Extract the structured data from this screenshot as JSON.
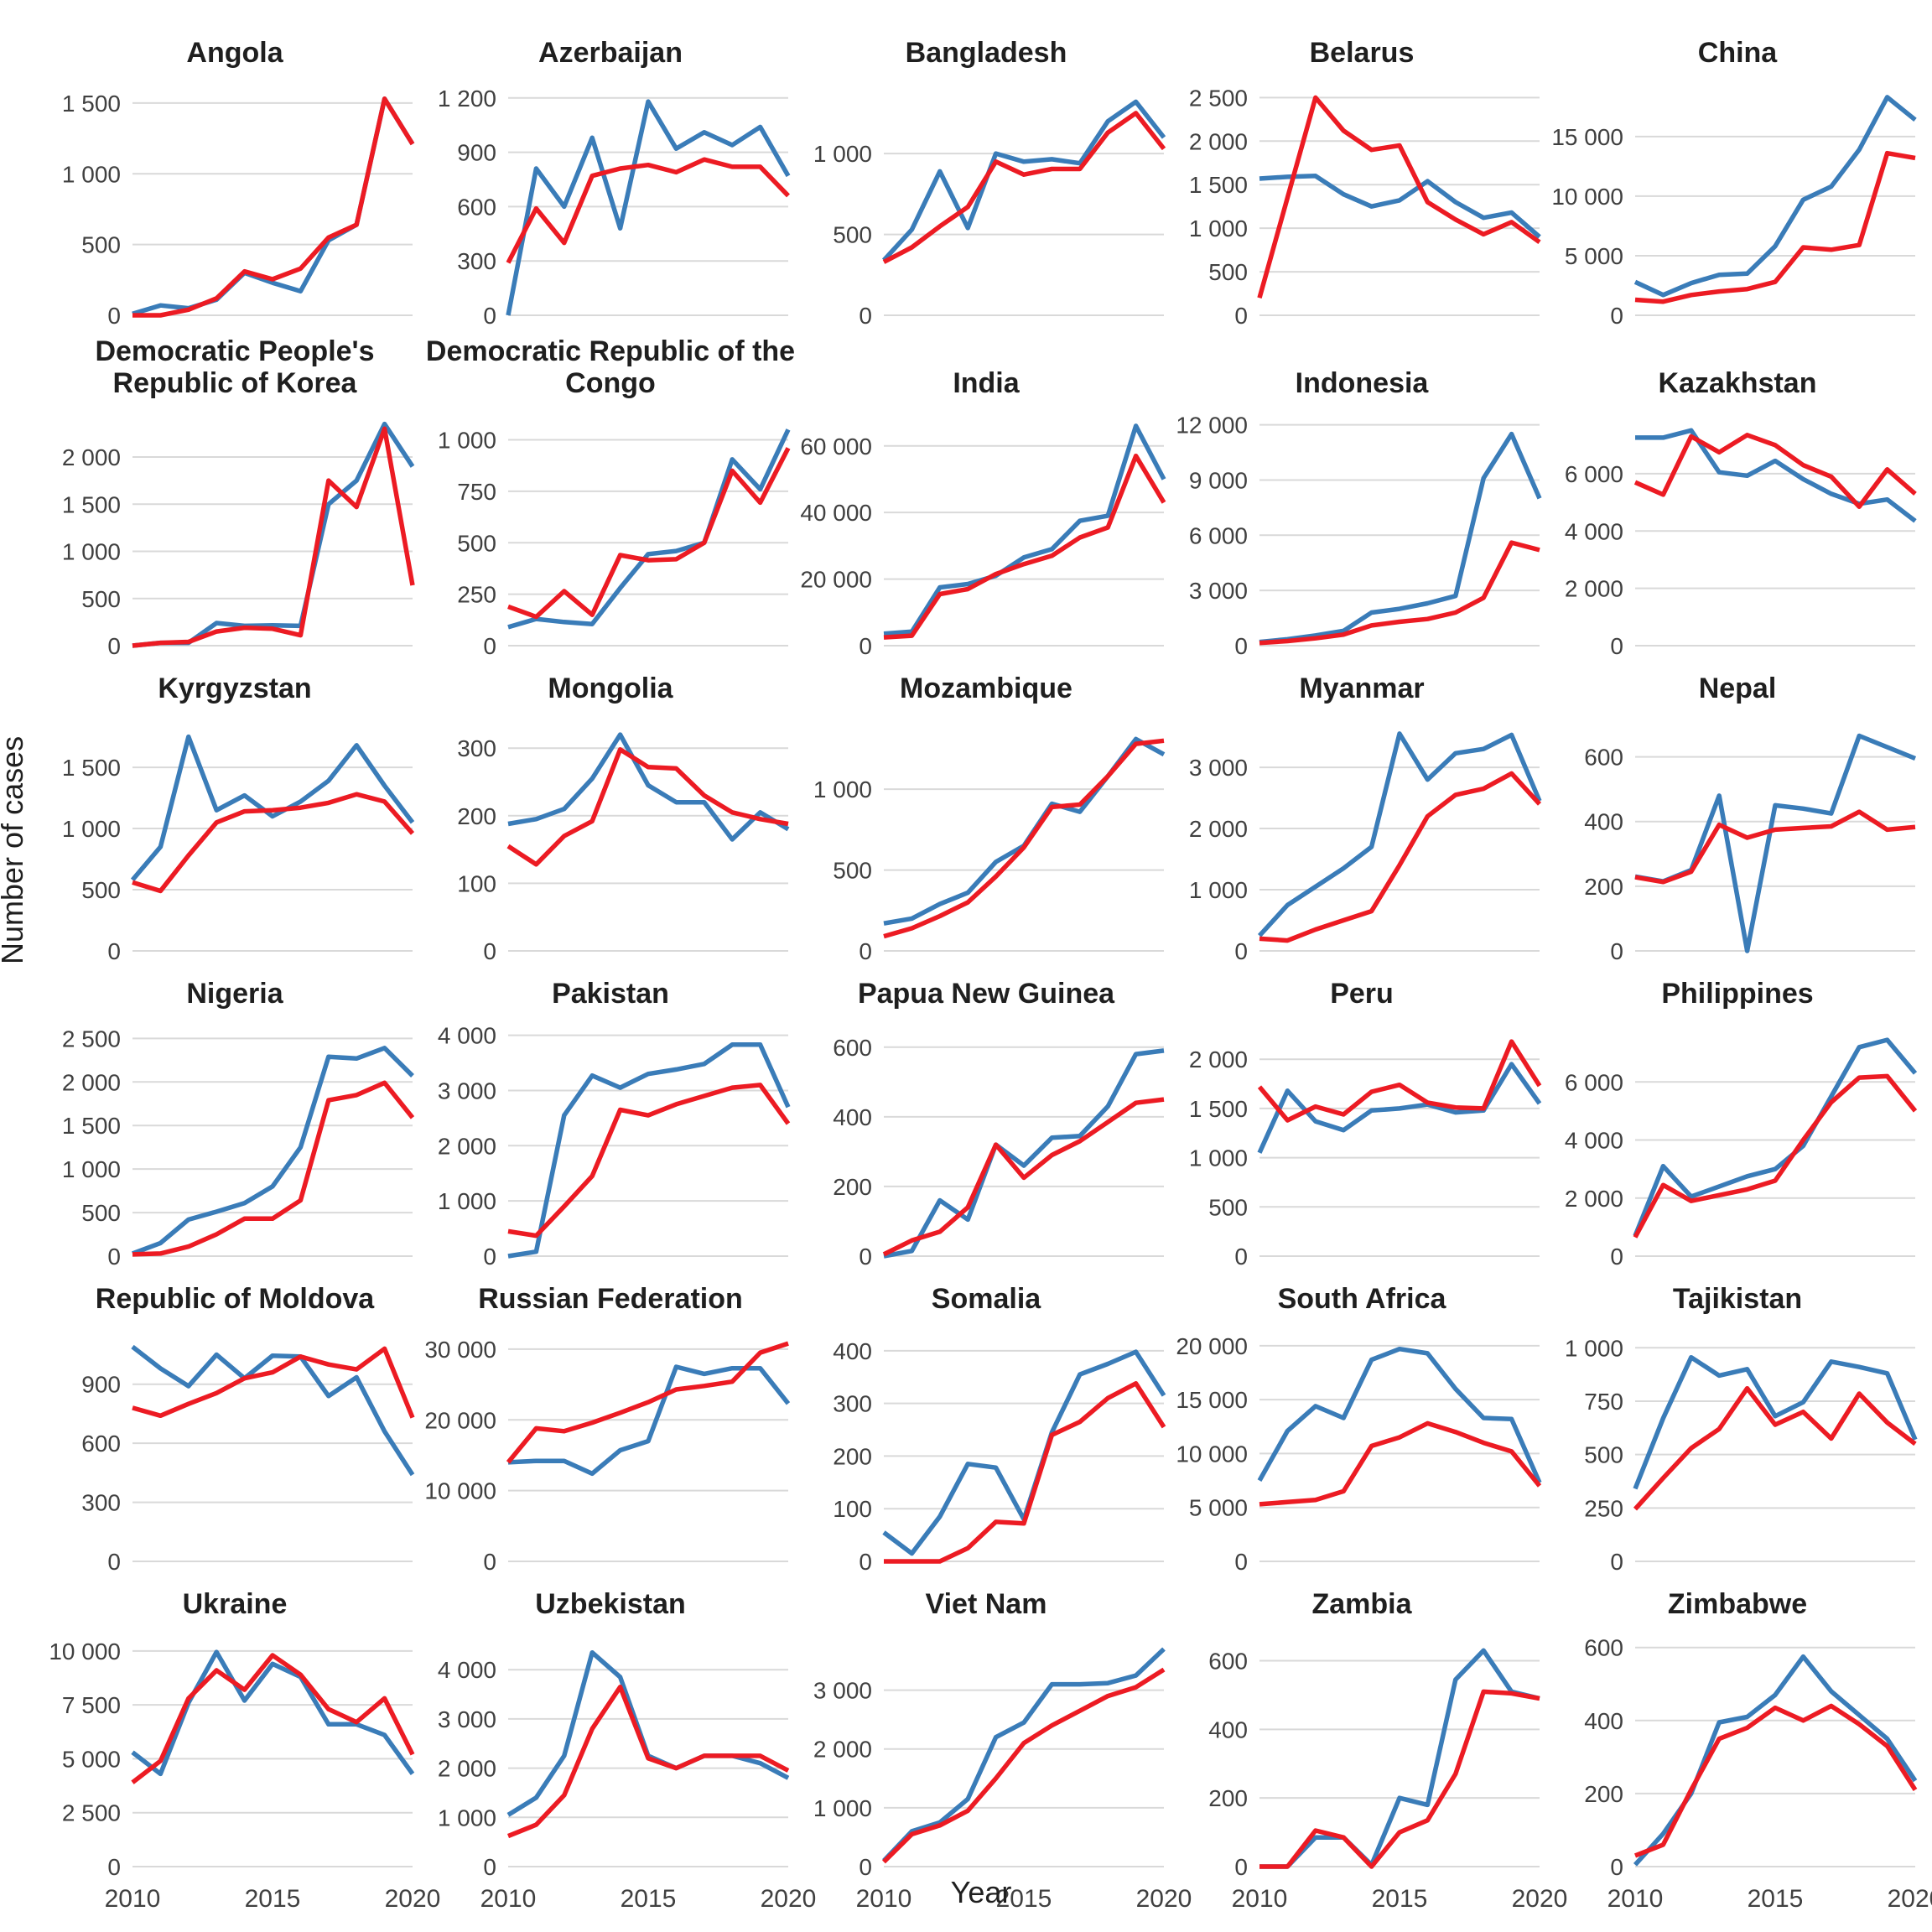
{
  "figure": {
    "ylabel": "Number of cases",
    "xlabel": "Year",
    "x_tick_labels": [
      "2010",
      "2015",
      "2020"
    ]
  },
  "chart_data": {
    "type": "line",
    "x": [
      2010,
      2011,
      2012,
      2013,
      2014,
      2015,
      2016,
      2017,
      2018,
      2019,
      2020
    ],
    "x_ticks": [
      2010,
      2015,
      2020
    ],
    "xlabel": "Year",
    "ylabel": "Number of cases",
    "grid": "horizontal-only",
    "legend_position": "none",
    "series_names": [
      "blue",
      "red"
    ],
    "colors": {
      "blue": "#3a7cb8",
      "red": "#ec1b23",
      "gridline": "#d9d9d9",
      "tick_text": "#404040",
      "title_text": "#1f1f1f"
    },
    "panels": [
      {
        "title": "Angola",
        "ylim": [
          0,
          1600
        ],
        "yticks": [
          0,
          500,
          1000,
          1500
        ],
        "blue": [
          10,
          70,
          50,
          110,
          300,
          230,
          170,
          530,
          640,
          1530,
          1210
        ],
        "red": [
          0,
          0,
          40,
          120,
          310,
          255,
          330,
          550,
          640,
          1530,
          1210
        ]
      },
      {
        "title": "Azerbaijan",
        "ylim": [
          0,
          1250
        ],
        "yticks": [
          0,
          300,
          600,
          900,
          1200
        ],
        "blue": [
          0,
          810,
          600,
          980,
          480,
          1180,
          920,
          1010,
          940,
          1040,
          770
        ],
        "red": [
          290,
          590,
          400,
          770,
          810,
          830,
          790,
          860,
          820,
          820,
          660
        ]
      },
      {
        "title": "Bangladesh",
        "ylim": [
          0,
          1400
        ],
        "yticks": [
          0,
          500,
          1000
        ],
        "blue": [
          340,
          530,
          890,
          540,
          1000,
          950,
          965,
          940,
          1200,
          1320,
          1100
        ],
        "red": [
          330,
          420,
          550,
          670,
          950,
          870,
          905,
          905,
          1130,
          1250,
          1030
        ]
      },
      {
        "title": "Belarus",
        "ylim": [
          0,
          2600
        ],
        "yticks": [
          0,
          500,
          1000,
          1500,
          2000,
          2500
        ],
        "blue": [
          1570,
          1590,
          1600,
          1390,
          1250,
          1320,
          1540,
          1300,
          1120,
          1180,
          900
        ],
        "red": [
          200,
          1350,
          2500,
          2120,
          1900,
          1950,
          1300,
          1100,
          930,
          1070,
          840
        ]
      },
      {
        "title": "China",
        "ylim": [
          0,
          19000
        ],
        "yticks": [
          0,
          5000,
          10000,
          15000
        ],
        "blue": [
          2800,
          1700,
          2700,
          3400,
          3500,
          5800,
          9700,
          10800,
          13900,
          18300,
          16400
        ],
        "red": [
          1300,
          1150,
          1700,
          2000,
          2200,
          2800,
          5700,
          5500,
          5900,
          13600,
          13200
        ]
      },
      {
        "title": "Democratic People's Republic of Korea",
        "ylim": [
          0,
          2400
        ],
        "yticks": [
          0,
          500,
          1000,
          1500,
          2000
        ],
        "blue": [
          0,
          30,
          30,
          240,
          210,
          215,
          210,
          1500,
          1750,
          2350,
          1900
        ],
        "red": [
          0,
          30,
          40,
          150,
          190,
          180,
          110,
          1750,
          1470,
          2300,
          640
        ]
      },
      {
        "title": "Democratic Republic of the Congo",
        "ylim": [
          0,
          1100
        ],
        "yticks": [
          0,
          250,
          500,
          750,
          1000
        ],
        "blue": [
          90,
          130,
          115,
          105,
          280,
          445,
          460,
          500,
          905,
          760,
          1050
        ],
        "red": [
          190,
          140,
          265,
          150,
          440,
          415,
          420,
          500,
          850,
          695,
          960
        ]
      },
      {
        "title": "India",
        "ylim": [
          0,
          68000
        ],
        "yticks": [
          0,
          20000,
          40000,
          60000
        ],
        "blue": [
          3600,
          4200,
          17500,
          18500,
          21000,
          26500,
          29000,
          37500,
          39000,
          66000,
          50000
        ],
        "red": [
          2500,
          3000,
          15500,
          17000,
          21500,
          24500,
          27000,
          32500,
          35500,
          57000,
          43000
        ]
      },
      {
        "title": "Indonesia",
        "ylim": [
          0,
          12300
        ],
        "yticks": [
          0,
          3000,
          6000,
          9000,
          12000
        ],
        "blue": [
          200,
          350,
          550,
          800,
          1800,
          2000,
          2300,
          2700,
          9100,
          11500,
          8000
        ],
        "red": [
          150,
          250,
          400,
          600,
          1100,
          1300,
          1450,
          1800,
          2600,
          5600,
          5200
        ]
      },
      {
        "title": "Kazakhstan",
        "ylim": [
          0,
          7900
        ],
        "yticks": [
          0,
          2000,
          4000,
          6000
        ],
        "blue": [
          7260,
          7260,
          7510,
          6050,
          5930,
          6450,
          5810,
          5300,
          4950,
          5100,
          4350
        ],
        "red": [
          5700,
          5270,
          7300,
          6750,
          7350,
          7000,
          6300,
          5900,
          4850,
          6150,
          5300
        ]
      },
      {
        "title": "Kyrgyzstan",
        "ylim": [
          0,
          1850
        ],
        "yticks": [
          0,
          500,
          1000,
          1500
        ],
        "blue": [
          580,
          850,
          1750,
          1150,
          1270,
          1100,
          1220,
          1390,
          1680,
          1350,
          1050
        ],
        "red": [
          560,
          490,
          780,
          1050,
          1140,
          1150,
          1170,
          1210,
          1280,
          1220,
          960
        ]
      },
      {
        "title": "Mongolia",
        "ylim": [
          0,
          335
        ],
        "yticks": [
          0,
          100,
          200,
          300
        ],
        "blue": [
          188,
          195,
          210,
          255,
          320,
          245,
          220,
          220,
          165,
          205,
          180
        ],
        "red": [
          155,
          128,
          170,
          192,
          298,
          272,
          270,
          230,
          205,
          195,
          188
        ]
      },
      {
        "title": "Mozambique",
        "ylim": [
          0,
          1400
        ],
        "yticks": [
          0,
          500,
          1000
        ],
        "blue": [
          170,
          200,
          290,
          360,
          550,
          650,
          910,
          860,
          1080,
          1310,
          1215
        ],
        "red": [
          90,
          140,
          215,
          300,
          460,
          640,
          890,
          905,
          1080,
          1280,
          1300
        ]
      },
      {
        "title": "Myanmar",
        "ylim": [
          0,
          3700
        ],
        "yticks": [
          0,
          1000,
          2000,
          3000
        ],
        "blue": [
          250,
          750,
          1050,
          1350,
          1700,
          3550,
          2800,
          3230,
          3300,
          3530,
          2450
        ],
        "red": [
          200,
          170,
          350,
          500,
          650,
          1400,
          2200,
          2550,
          2650,
          2900,
          2400
        ]
      },
      {
        "title": "Nepal",
        "ylim": [
          0,
          700
        ],
        "yticks": [
          0,
          200,
          400,
          600
        ],
        "blue": [
          230,
          215,
          250,
          480,
          0,
          450,
          440,
          425,
          665,
          630,
          595
        ],
        "red": [
          228,
          213,
          245,
          390,
          350,
          375,
          380,
          385,
          430,
          375,
          383
        ]
      },
      {
        "title": "Nigeria",
        "ylim": [
          0,
          2600
        ],
        "yticks": [
          0,
          500,
          1000,
          1500,
          2000,
          2500
        ],
        "blue": [
          30,
          150,
          420,
          510,
          610,
          800,
          1250,
          2290,
          2270,
          2390,
          2070
        ],
        "red": [
          20,
          30,
          110,
          250,
          430,
          430,
          640,
          1790,
          1850,
          1990,
          1590
        ]
      },
      {
        "title": "Pakistan",
        "ylim": [
          0,
          4100
        ],
        "yticks": [
          0,
          1000,
          2000,
          3000,
          4000
        ],
        "blue": [
          0,
          80,
          2550,
          3270,
          3050,
          3300,
          3380,
          3480,
          3830,
          3830,
          2700
        ],
        "red": [
          450,
          370,
          900,
          1450,
          2650,
          2550,
          2750,
          2900,
          3050,
          3100,
          2400
        ]
      },
      {
        "title": "Papua New Guinea",
        "ylim": [
          0,
          650
        ],
        "yticks": [
          0,
          200,
          400,
          600
        ],
        "blue": [
          0,
          15,
          160,
          105,
          320,
          260,
          340,
          345,
          430,
          580,
          590
        ],
        "red": [
          5,
          45,
          70,
          140,
          320,
          225,
          290,
          330,
          385,
          440,
          450
        ]
      },
      {
        "title": "Peru",
        "ylim": [
          0,
          2300
        ],
        "yticks": [
          0,
          500,
          1000,
          1500,
          2000
        ],
        "blue": [
          1050,
          1680,
          1370,
          1280,
          1480,
          1500,
          1540,
          1460,
          1480,
          1950,
          1550
        ],
        "red": [
          1720,
          1380,
          1520,
          1440,
          1670,
          1740,
          1560,
          1510,
          1500,
          2180,
          1730
        ]
      },
      {
        "title": "Philippines",
        "ylim": [
          0,
          7800
        ],
        "yticks": [
          0,
          2000,
          4000,
          6000
        ],
        "blue": [
          700,
          3100,
          2050,
          2400,
          2750,
          3000,
          3800,
          5500,
          7200,
          7450,
          6300
        ],
        "red": [
          650,
          2450,
          1900,
          2100,
          2300,
          2600,
          4000,
          5300,
          6150,
          6200,
          5000
        ]
      },
      {
        "title": "Republic of Moldova",
        "ylim": [
          0,
          1150
        ],
        "yticks": [
          0,
          300,
          600,
          900
        ],
        "blue": [
          1090,
          980,
          890,
          1050,
          930,
          1045,
          1040,
          840,
          935,
          660,
          440
        ],
        "red": [
          780,
          740,
          800,
          855,
          930,
          960,
          1040,
          1000,
          975,
          1080,
          730
        ]
      },
      {
        "title": "Russian Federation",
        "ylim": [
          0,
          32000
        ],
        "yticks": [
          0,
          10000,
          20000,
          30000
        ],
        "blue": [
          14000,
          14200,
          14200,
          12400,
          15700,
          17000,
          27500,
          26500,
          27300,
          27300,
          22300
        ],
        "red": [
          14000,
          18800,
          18400,
          19600,
          21000,
          22500,
          24300,
          24800,
          25400,
          29500,
          30800
        ]
      },
      {
        "title": "Somalia",
        "ylim": [
          0,
          430
        ],
        "yticks": [
          0,
          100,
          200,
          300,
          400
        ],
        "blue": [
          55,
          15,
          85,
          185,
          178,
          80,
          245,
          355,
          375,
          398,
          315
        ],
        "red": [
          0,
          0,
          0,
          25,
          75,
          72,
          240,
          265,
          310,
          338,
          255
        ]
      },
      {
        "title": "South Africa",
        "ylim": [
          0,
          21000
        ],
        "yticks": [
          0,
          5000,
          10000,
          15000,
          20000
        ],
        "blue": [
          7500,
          12100,
          14400,
          13300,
          18700,
          19700,
          19300,
          16000,
          13300,
          13200,
          7300
        ],
        "red": [
          5300,
          5500,
          5700,
          6500,
          10700,
          11500,
          12800,
          12000,
          11000,
          10200,
          7000
        ]
      },
      {
        "title": "Tajikistan",
        "ylim": [
          0,
          1060
        ],
        "yticks": [
          0,
          250,
          500,
          750,
          1000
        ],
        "blue": [
          340,
          670,
          955,
          870,
          900,
          680,
          745,
          935,
          910,
          880,
          570
        ],
        "red": [
          245,
          390,
          530,
          620,
          810,
          640,
          700,
          575,
          785,
          650,
          550
        ]
      },
      {
        "title": "Ukraine",
        "ylim": [
          0,
          10500
        ],
        "yticks": [
          0,
          2500,
          5000,
          7500,
          10000
        ],
        "blue": [
          5300,
          4300,
          7600,
          9950,
          7700,
          9400,
          8800,
          6600,
          6600,
          6100,
          4300
        ],
        "red": [
          3900,
          4900,
          7800,
          9100,
          8200,
          9800,
          8900,
          7300,
          6700,
          7800,
          5200
        ]
      },
      {
        "title": "Uzbekistan",
        "ylim": [
          0,
          4600
        ],
        "yticks": [
          0,
          1000,
          2000,
          3000,
          4000
        ],
        "blue": [
          1050,
          1400,
          2250,
          4350,
          3850,
          2250,
          2000,
          2250,
          2250,
          2100,
          1800
        ],
        "red": [
          620,
          850,
          1450,
          2800,
          3650,
          2200,
          2000,
          2250,
          2250,
          2250,
          1950
        ]
      },
      {
        "title": "Viet Nam",
        "ylim": [
          0,
          3850
        ],
        "yticks": [
          0,
          1000,
          2000,
          3000
        ],
        "blue": [
          100,
          600,
          750,
          1150,
          2200,
          2450,
          3100,
          3100,
          3120,
          3250,
          3700
        ],
        "red": [
          80,
          550,
          700,
          950,
          1500,
          2100,
          2400,
          2650,
          2900,
          3050,
          3350
        ]
      },
      {
        "title": "Zambia",
        "ylim": [
          0,
          660
        ],
        "yticks": [
          0,
          200,
          400,
          600
        ],
        "blue": [
          0,
          0,
          85,
          85,
          5,
          200,
          180,
          545,
          630,
          510,
          490
        ],
        "red": [
          0,
          0,
          105,
          85,
          0,
          100,
          135,
          270,
          510,
          505,
          490
        ]
      },
      {
        "title": "Zimbabwe",
        "ylim": [
          0,
          620
        ],
        "yticks": [
          0,
          200,
          400,
          600
        ],
        "blue": [
          5,
          90,
          200,
          395,
          410,
          470,
          575,
          480,
          415,
          350,
          235
        ],
        "red": [
          30,
          60,
          210,
          350,
          380,
          435,
          400,
          440,
          390,
          330,
          210
        ]
      }
    ]
  }
}
